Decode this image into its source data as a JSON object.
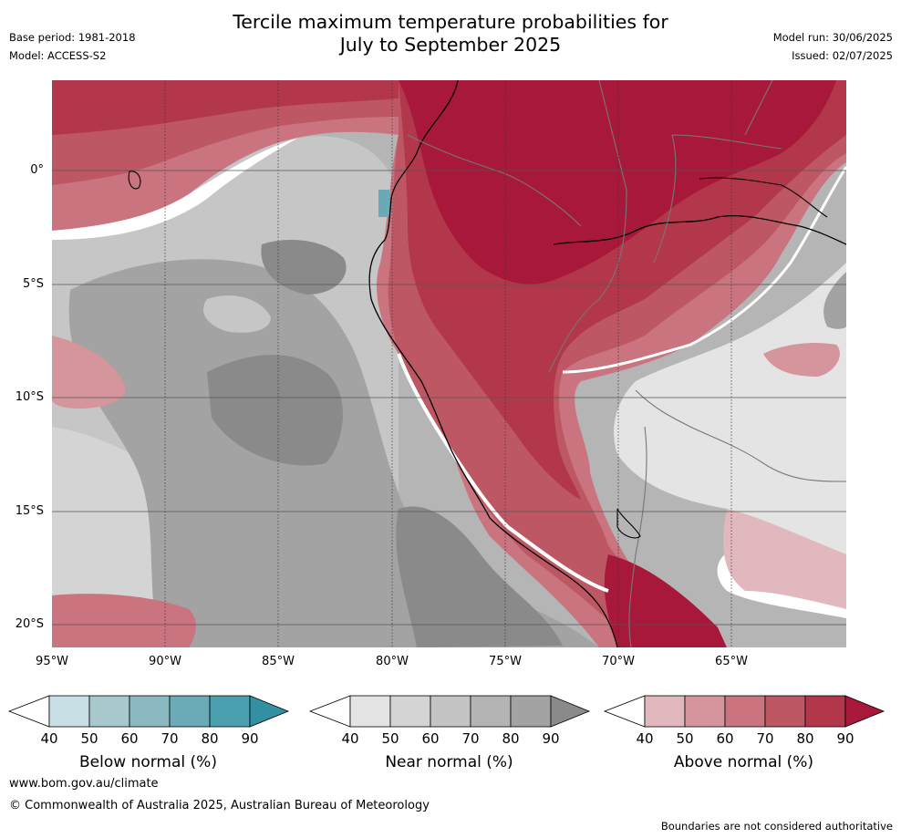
{
  "title": {
    "line1": "Tercile maximum temperature probabilities for",
    "line2": "July to September 2025"
  },
  "meta": {
    "base_period": "Base period: 1981-2018",
    "model": "Model: ACCESS-S2",
    "model_run": "Model run: 30/06/2025",
    "issued": "Issued: 02/07/2025"
  },
  "map": {
    "lat_labels": [
      "0°",
      "5°S",
      "10°S",
      "15°S",
      "20°S"
    ],
    "lon_labels": [
      "95°W",
      "90°W",
      "85°W",
      "80°W",
      "75°W",
      "70°W",
      "65°W"
    ],
    "colors": {
      "near_40": "#e4e4e4",
      "near_50": "#d4d4d4",
      "near_60": "#c6c6c6",
      "near_70": "#b5b5b5",
      "near_80": "#a3a3a3",
      "near_90": "#8a8a8a",
      "above_40": "#e0b8bd",
      "above_50": "#d4959c",
      "above_60": "#c9747e",
      "above_70": "#be5764",
      "above_80": "#b3374a",
      "above_90": "#a8183a",
      "below_50": "#a6c6cc",
      "below_70": "#6aaab6"
    }
  },
  "colorbars": [
    {
      "name": "below",
      "title": "Below normal (%)",
      "ticks": [
        "40",
        "50",
        "60",
        "70",
        "80",
        "90"
      ],
      "colors": [
        "#c8e0e5",
        "#a7c8cd",
        "#8bb9c1",
        "#6babb7",
        "#4aa0ae",
        "#3190a3"
      ]
    },
    {
      "name": "near",
      "title": "Near normal (%)",
      "ticks": [
        "40",
        "50",
        "60",
        "70",
        "80",
        "90"
      ],
      "colors": [
        "#e4e4e4",
        "#d4d4d4",
        "#c4c4c4",
        "#b4b4b4",
        "#a3a3a3",
        "#8a8a8a"
      ]
    },
    {
      "name": "above",
      "title": "Above normal (%)",
      "ticks": [
        "40",
        "50",
        "60",
        "70",
        "80",
        "90"
      ],
      "colors": [
        "#e0b8bd",
        "#d4959c",
        "#c9747e",
        "#be5764",
        "#b3374a",
        "#a8183a"
      ]
    }
  ],
  "footer": {
    "url": "www.bom.gov.au/climate",
    "copyright": "© Commonwealth of Australia 2025, Australian Bureau of Meteorology",
    "disclaimer": "Boundaries are not considered authoritative"
  }
}
